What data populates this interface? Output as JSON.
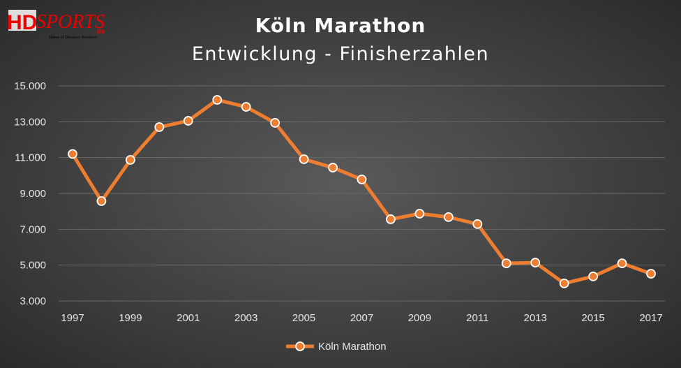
{
  "logo": {
    "main": "HD",
    "script": "sports",
    "tld": ".de",
    "tagline": "Home of Distance Runners"
  },
  "chart_data": {
    "type": "line",
    "title": "Köln Marathon",
    "subtitle": "Entwicklung - Finisherzahlen",
    "xlabel": "",
    "ylabel": "",
    "x": [
      1997,
      1998,
      1999,
      2000,
      2001,
      2002,
      2003,
      2004,
      2005,
      2006,
      2007,
      2008,
      2009,
      2010,
      2011,
      2012,
      2013,
      2014,
      2015,
      2016,
      2017
    ],
    "x_tick_labels": [
      "1997",
      "1999",
      "2001",
      "2003",
      "2005",
      "2007",
      "2009",
      "2011",
      "2013",
      "2015",
      "2017"
    ],
    "y_tick_labels": [
      "3.000",
      "5.000",
      "7.000",
      "9.000",
      "11.000",
      "13.000",
      "15.000"
    ],
    "ylim": [
      3000,
      15000
    ],
    "grid": "horizontal",
    "legend": "bottom",
    "series": [
      {
        "name": "Köln Marathon",
        "color": "#ed7d31",
        "values": [
          11200,
          8570,
          10870,
          12700,
          13050,
          14220,
          13830,
          12940,
          10910,
          10440,
          9780,
          7560,
          7870,
          7680,
          7290,
          5100,
          5140,
          3980,
          4370,
          5100,
          4520
        ]
      }
    ]
  }
}
